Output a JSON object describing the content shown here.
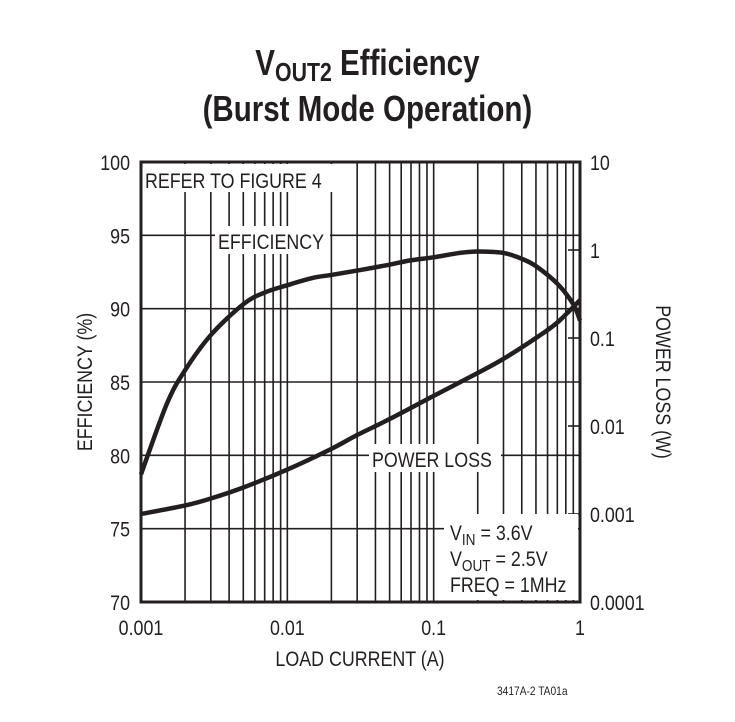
{
  "header": {
    "title_main": "V",
    "title_sub": "OUT2",
    "title_rest": " Efficiency",
    "title_line2": "(Burst Mode Operation)"
  },
  "annotations": {
    "refer": "REFER TO FIGURE 4",
    "efficiency": "EFFICIENCY",
    "power_loss": "POWER LOSS",
    "cond_vin": "V",
    "cond_vin_sub": "IN",
    "cond_vin_val": " = 3.6V",
    "cond_vout": "V",
    "cond_vout_sub": "OUT",
    "cond_vout_val": " = 2.5V",
    "cond_freq": "FREQ = 1MHz"
  },
  "footer": {
    "code": "3417A-2 TA01a"
  },
  "chart_data": {
    "type": "line",
    "title": "VOUT2 Efficiency (Burst Mode Operation)",
    "xlabel": "LOAD CURRENT (A)",
    "ylabel": "EFFICIENCY (%)",
    "y2label": "POWER LOSS (W)",
    "xscale": "log",
    "xlim": [
      0.001,
      1
    ],
    "ylim": [
      70,
      100
    ],
    "y2scale": "log",
    "y2lim": [
      0.0001,
      10
    ],
    "xticks": [
      "0.001",
      "0.01",
      "0.1",
      "1"
    ],
    "yticks": [
      "70",
      "75",
      "80",
      "85",
      "90",
      "95",
      "100"
    ],
    "y2ticks": [
      "0.0001",
      "0.001",
      "0.01",
      "0.1",
      "1",
      "10"
    ],
    "grid": true,
    "series": [
      {
        "name": "EFFICIENCY",
        "axis": "left",
        "x": [
          0.001,
          0.0015,
          0.002,
          0.003,
          0.005,
          0.007,
          0.01,
          0.015,
          0.02,
          0.03,
          0.05,
          0.07,
          0.1,
          0.15,
          0.2,
          0.3,
          0.4,
          0.5,
          0.7,
          0.9,
          1.0
        ],
        "values": [
          78.7,
          83.5,
          85.8,
          88.2,
          90.3,
          91.1,
          91.6,
          92.1,
          92.3,
          92.6,
          93.0,
          93.3,
          93.5,
          93.8,
          93.9,
          93.8,
          93.4,
          92.9,
          91.7,
          90.3,
          89.2
        ]
      },
      {
        "name": "POWER LOSS",
        "axis": "right",
        "x": [
          0.001,
          0.002,
          0.003,
          0.005,
          0.01,
          0.02,
          0.03,
          0.05,
          0.1,
          0.2,
          0.3,
          0.5,
          0.7,
          1.0
        ],
        "values": [
          0.001,
          0.00125,
          0.0015,
          0.002,
          0.0032,
          0.0055,
          0.0079,
          0.012,
          0.022,
          0.04,
          0.058,
          0.1,
          0.15,
          0.27
        ]
      }
    ],
    "annotations": [
      "REFER TO FIGURE 4",
      "VIN = 3.6V",
      "VOUT = 2.5V",
      "FREQ = 1MHz"
    ]
  }
}
